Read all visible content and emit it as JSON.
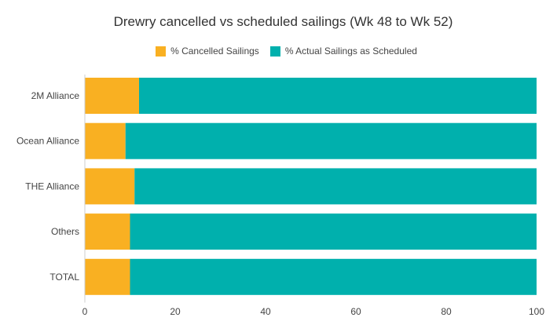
{
  "chart_data": {
    "type": "bar",
    "orientation": "horizontal",
    "stacked": true,
    "title": "Drewry cancelled vs scheduled sailings (Wk 48 to Wk 52)",
    "categories": [
      "2M Alliance",
      "Ocean Alliance",
      "THE Alliance",
      "Others",
      "TOTAL"
    ],
    "series": [
      {
        "name": "% Cancelled Sailings",
        "color": "#F9B022",
        "values": [
          12,
          9,
          11,
          10,
          10
        ]
      },
      {
        "name": "% Actual Sailings as Scheduled",
        "color": "#00B0AD",
        "values": [
          88,
          91,
          89,
          90,
          90
        ]
      }
    ],
    "xlim": [
      0,
      100
    ],
    "xticks": [
      "0",
      "20",
      "40",
      "60",
      "80",
      "100"
    ],
    "legend_position": "top",
    "grid": false
  }
}
